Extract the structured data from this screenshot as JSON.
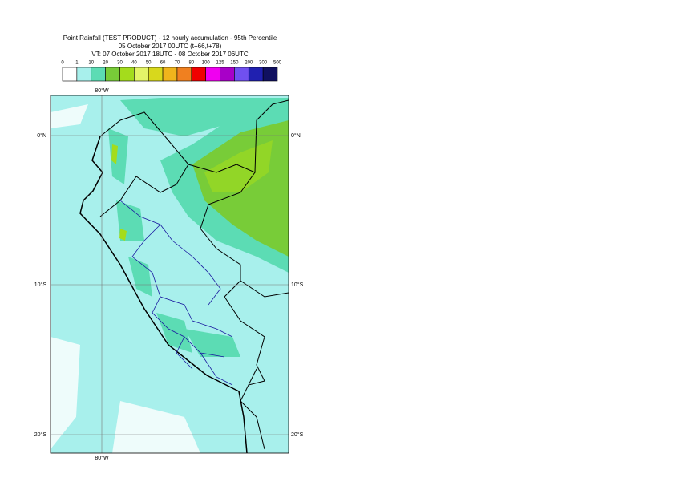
{
  "header": {
    "title_lines": [
      "Point Rainfall (TEST PRODUCT) - 12 hourly accumulation - 95th Percentile",
      "05 October 2017 00UTC (t+66,t+78)",
      "VT: 07 October 2017 18UTC - 08 October 2017 06UTC"
    ]
  },
  "legend": {
    "thresholds": [
      0,
      1,
      10,
      20,
      30,
      40,
      50,
      60,
      70,
      80,
      100,
      125,
      150,
      200,
      300,
      500
    ],
    "colors": [
      "#ffffff",
      "#a8f0ec",
      "#5cdcb4",
      "#78cc38",
      "#a4dc1c",
      "#e4f468",
      "#d8d81c",
      "#f0b41c",
      "#f08020",
      "#f00000",
      "#f000f0",
      "#a800c8",
      "#7050f0",
      "#2020b0",
      "#101060"
    ]
  },
  "map": {
    "lat_labels": [
      "0°N",
      "10°S",
      "20°S"
    ],
    "lon_labels": [
      "80°W"
    ]
  }
}
